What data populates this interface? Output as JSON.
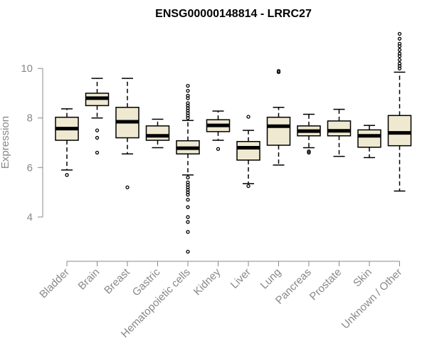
{
  "chart_data": {
    "type": "boxplot",
    "title": "ENSG00000148814 - LRRC27",
    "xlabel": "",
    "ylabel": "Expression",
    "ylim": [
      2.5,
      11.5
    ],
    "yticks": [
      4,
      6,
      8,
      10
    ],
    "box_color": "#efe9d1",
    "categories": [
      "Bladder",
      "Brain",
      "Breast",
      "Gastric",
      "Hematopoietic cells",
      "Kidney",
      "Liver",
      "Lung",
      "Pancreas",
      "Prostate",
      "Skin",
      "Unknown / Other"
    ],
    "boxes": [
      {
        "category": "Bladder",
        "whislo": 5.9,
        "q1": 7.1,
        "median": 7.57,
        "q3": 8.03,
        "whishi": 8.37,
        "outliers": [
          5.7
        ]
      },
      {
        "category": "Brain",
        "whislo": 8.0,
        "q1": 8.5,
        "median": 8.8,
        "q3": 9.0,
        "whishi": 9.6,
        "outliers": [
          7.5,
          7.2,
          6.6
        ]
      },
      {
        "category": "Breast",
        "whislo": 6.55,
        "q1": 7.2,
        "median": 7.85,
        "q3": 8.43,
        "whishi": 9.6,
        "outliers": [
          5.2
        ]
      },
      {
        "category": "Gastric",
        "whislo": 6.8,
        "q1": 7.1,
        "median": 7.28,
        "q3": 7.68,
        "whishi": 7.95,
        "outliers": []
      },
      {
        "category": "Hematopoietic cells",
        "whislo": 5.7,
        "q1": 6.55,
        "median": 6.78,
        "q3": 7.08,
        "whishi": 7.9,
        "outliers": [
          9.3,
          9.1,
          8.9,
          8.8,
          8.6,
          8.5,
          8.4,
          8.3,
          8.2,
          8.1,
          8.0,
          5.6,
          5.4,
          5.3,
          5.2,
          5.1,
          5.0,
          4.9,
          4.7,
          4.4,
          4.0,
          3.8,
          3.4,
          2.6
        ]
      },
      {
        "category": "Kidney",
        "whislo": 7.1,
        "q1": 7.45,
        "median": 7.7,
        "q3": 7.93,
        "whishi": 8.28,
        "outliers": [
          6.75
        ]
      },
      {
        "category": "Liver",
        "whislo": 5.35,
        "q1": 6.3,
        "median": 6.8,
        "q3": 7.05,
        "whishi": 7.5,
        "outliers": [
          8.05,
          5.25
        ]
      },
      {
        "category": "Lung",
        "whislo": 6.1,
        "q1": 6.9,
        "median": 7.67,
        "q3": 8.03,
        "whishi": 8.43,
        "outliers": [
          9.9,
          9.85
        ]
      },
      {
        "category": "Pancreas",
        "whislo": 6.8,
        "q1": 7.28,
        "median": 7.47,
        "q3": 7.68,
        "whishi": 8.15,
        "outliers": [
          6.65,
          6.6
        ]
      },
      {
        "category": "Prostate",
        "whislo": 6.45,
        "q1": 7.28,
        "median": 7.48,
        "q3": 7.88,
        "whishi": 8.35,
        "outliers": []
      },
      {
        "category": "Skin",
        "whislo": 6.4,
        "q1": 6.82,
        "median": 7.28,
        "q3": 7.52,
        "whishi": 7.7,
        "outliers": []
      },
      {
        "category": "Unknown / Other",
        "whislo": 5.05,
        "q1": 6.88,
        "median": 7.4,
        "q3": 8.1,
        "whishi": 9.85,
        "outliers": [
          11.4,
          11.2,
          11.0,
          10.9,
          10.75,
          10.6,
          10.5,
          10.35,
          10.2,
          10.1,
          10.0
        ]
      }
    ]
  }
}
